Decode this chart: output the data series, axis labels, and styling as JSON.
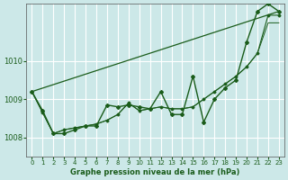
{
  "title": "Graphe pression niveau de la mer (hPa)",
  "bg_color": "#cce8e8",
  "grid_color": "#ffffff",
  "line_color": "#1a5c1a",
  "xlabel_color": "#1a5c1a",
  "x_ticks": [
    0,
    1,
    2,
    3,
    4,
    5,
    6,
    7,
    8,
    9,
    10,
    11,
    12,
    13,
    14,
    15,
    16,
    17,
    18,
    19,
    20,
    21,
    22,
    23
  ],
  "y_ticks": [
    1008,
    1009,
    1010
  ],
  "ylim": [
    1007.5,
    1011.5
  ],
  "xlim": [
    -0.5,
    23.5
  ],
  "series": {
    "line1": [
      1009.2,
      1008.7,
      1008.1,
      1008.1,
      1008.2,
      1008.3,
      1008.3,
      1008.85,
      1008.8,
      1008.85,
      1008.8,
      1008.75,
      1009.2,
      1008.6,
      1008.6,
      1009.6,
      1008.4,
      1009.0,
      1009.3,
      1009.5,
      1010.5,
      1011.3,
      1011.5,
      1011.3
    ],
    "line2": [
      1009.2,
      1008.65,
      1008.1,
      1008.2,
      1008.25,
      1008.3,
      1008.35,
      1008.45,
      1008.6,
      1008.9,
      1008.7,
      1008.75,
      1008.8,
      1008.75,
      1008.75,
      1008.8,
      1009.0,
      1009.2,
      1009.4,
      1009.6,
      1009.85,
      1010.2,
      1011.2,
      1011.2
    ],
    "line3": [
      1009.2,
      1008.65,
      1008.1,
      1008.2,
      1008.25,
      1008.3,
      1008.35,
      1008.45,
      1008.6,
      1008.9,
      1008.7,
      1008.75,
      1008.8,
      1008.75,
      1008.75,
      1008.8,
      1009.0,
      1009.2,
      1009.4,
      1009.6,
      1009.85,
      1010.2,
      1011.0,
      1011.0
    ]
  }
}
